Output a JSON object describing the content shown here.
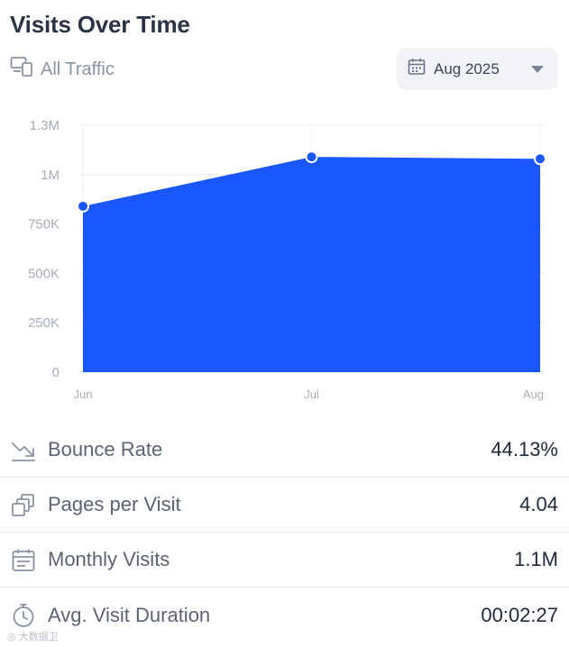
{
  "header": {
    "title": "Visits Over Time"
  },
  "filter": {
    "label": "All Traffic",
    "icon": "devices-icon"
  },
  "date_selector": {
    "value": "Aug 2025",
    "icon": "calendar-icon"
  },
  "chart_data": {
    "type": "area",
    "x": [
      "Jun",
      "Jul",
      "Aug"
    ],
    "series": [
      {
        "values": [
          840000,
          1090000,
          1080000
        ]
      }
    ],
    "yticks": [
      "0",
      "250K",
      "500K",
      "750K",
      "1M",
      "1.3M"
    ],
    "ytick_values": [
      0,
      250000,
      500000,
      750000,
      1000000,
      1250000
    ],
    "ylim": [
      0,
      1250000
    ],
    "grid": true,
    "fill_color": "#1b57ff"
  },
  "metrics": [
    {
      "label": "Bounce Rate",
      "value": "44.13%",
      "icon": "trend-down-icon"
    },
    {
      "label": "Pages per Visit",
      "value": "4.04",
      "icon": "pages-icon"
    },
    {
      "label": "Monthly Visits",
      "value": "1.1M",
      "icon": "calendar-icon"
    },
    {
      "label": "Avg. Visit Duration",
      "value": "00:02:27",
      "icon": "timer-icon"
    }
  ],
  "watermark": "◎ 大数据卫"
}
